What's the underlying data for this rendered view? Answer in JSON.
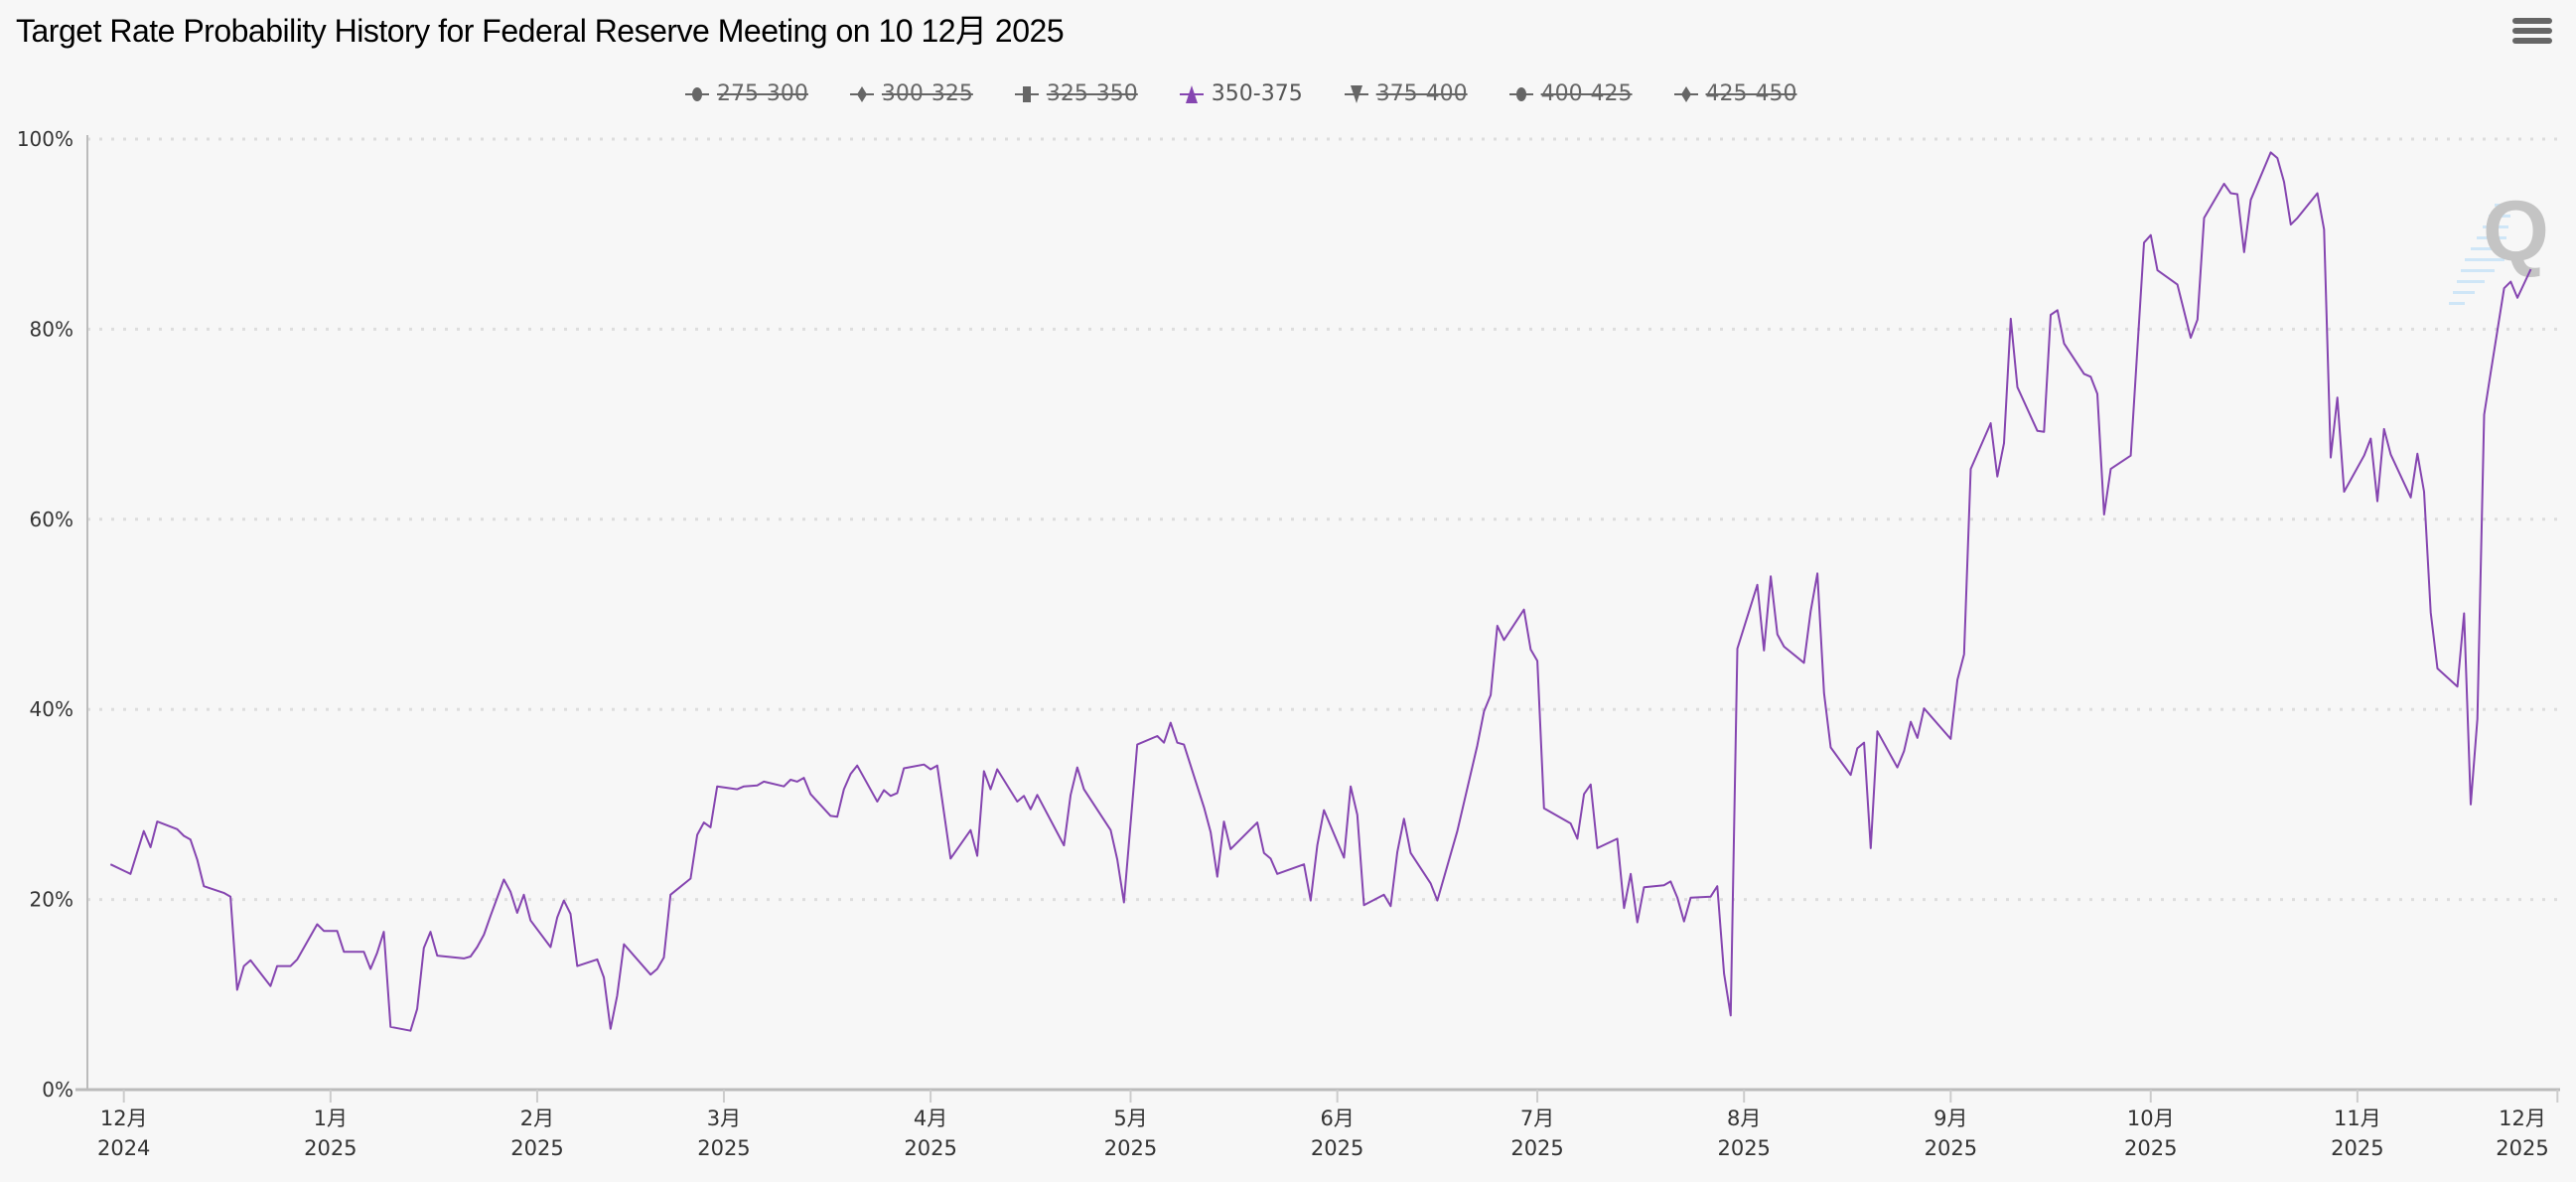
{
  "title": "Target Rate Probability History for Federal Reserve Meeting on 10 12月 2025",
  "menu_icon": "hamburger-menu-icon",
  "watermark": "Q",
  "legend": [
    {
      "label": "275-300",
      "symbol": "circle",
      "active": false
    },
    {
      "label": "300-325",
      "symbol": "diamond",
      "active": false
    },
    {
      "label": "325-350",
      "symbol": "square",
      "active": false
    },
    {
      "label": "350-375",
      "symbol": "triangle",
      "active": true
    },
    {
      "label": "375-400",
      "symbol": "triangle-down",
      "active": false
    },
    {
      "label": "400-425",
      "symbol": "circle",
      "active": false
    },
    {
      "label": "425-450",
      "symbol": "diamond",
      "active": false
    }
  ],
  "colors": {
    "active_series": "#8545b0",
    "inactive_legend": "#666666",
    "background": "#f7f7f7",
    "grid": "#dddddd"
  },
  "chart_data": {
    "type": "line",
    "grid": true,
    "legend_position": "top-center",
    "ylim": [
      0,
      100
    ],
    "y_ticks": [
      {
        "value": 0,
        "label": "0%"
      },
      {
        "value": 20,
        "label": "20%"
      },
      {
        "value": 40,
        "label": "40%"
      },
      {
        "value": 60,
        "label": "60%"
      },
      {
        "value": 80,
        "label": "80%"
      },
      {
        "value": 100,
        "label": "100%"
      }
    ],
    "xlim": [
      "2024-11-27",
      "2025-12-01"
    ],
    "x_ticks": [
      {
        "date": "2024-12-01",
        "month": "12月",
        "year": "2024"
      },
      {
        "date": "2025-01-01",
        "month": "1月",
        "year": "2025"
      },
      {
        "date": "2025-02-01",
        "month": "2月",
        "year": "2025"
      },
      {
        "date": "2025-03-01",
        "month": "3月",
        "year": "2025"
      },
      {
        "date": "2025-04-01",
        "month": "4月",
        "year": "2025"
      },
      {
        "date": "2025-05-01",
        "month": "5月",
        "year": "2025"
      },
      {
        "date": "2025-06-01",
        "month": "6月",
        "year": "2025"
      },
      {
        "date": "2025-07-01",
        "month": "7月",
        "year": "2025"
      },
      {
        "date": "2025-08-01",
        "month": "8月",
        "year": "2025"
      },
      {
        "date": "2025-09-01",
        "month": "9月",
        "year": "2025"
      },
      {
        "date": "2025-10-01",
        "month": "10月",
        "year": "2025"
      },
      {
        "date": "2025-11-01",
        "month": "11月",
        "year": "2025"
      },
      {
        "date": "2025-12-01",
        "month": "12月",
        "year": "2025"
      }
    ],
    "series": [
      {
        "name": "350-375",
        "points": [
          [
            "2024-11-29",
            23.7
          ],
          [
            "2024-12-02",
            22.7
          ],
          [
            "2024-12-04",
            27.2
          ],
          [
            "2024-12-05",
            25.5
          ],
          [
            "2024-12-06",
            28.2
          ],
          [
            "2024-12-09",
            27.4
          ],
          [
            "2024-12-10",
            26.7
          ],
          [
            "2024-12-11",
            26.3
          ],
          [
            "2024-12-12",
            24.2
          ],
          [
            "2024-12-13",
            21.4
          ],
          [
            "2024-12-16",
            20.7
          ],
          [
            "2024-12-17",
            20.3
          ],
          [
            "2024-12-18",
            10.5
          ],
          [
            "2024-12-19",
            13.0
          ],
          [
            "2024-12-20",
            13.6
          ],
          [
            "2024-12-23",
            10.9
          ],
          [
            "2024-12-24",
            13.0
          ],
          [
            "2024-12-26",
            13.0
          ],
          [
            "2024-12-27",
            13.7
          ],
          [
            "2024-12-30",
            17.4
          ],
          [
            "2024-12-31",
            16.7
          ],
          [
            "2025-01-02",
            16.7
          ],
          [
            "2025-01-03",
            14.5
          ],
          [
            "2025-01-06",
            14.5
          ],
          [
            "2025-01-07",
            12.7
          ],
          [
            "2025-01-08",
            14.4
          ],
          [
            "2025-01-09",
            16.6
          ],
          [
            "2025-01-10",
            6.6
          ],
          [
            "2025-01-13",
            6.2
          ],
          [
            "2025-01-14",
            8.5
          ],
          [
            "2025-01-15",
            14.9
          ],
          [
            "2025-01-16",
            16.6
          ],
          [
            "2025-01-17",
            14.1
          ],
          [
            "2025-01-21",
            13.8
          ],
          [
            "2025-01-22",
            14.0
          ],
          [
            "2025-01-23",
            15.0
          ],
          [
            "2025-01-24",
            16.3
          ],
          [
            "2025-01-25",
            18.3
          ],
          [
            "2025-01-27",
            22.1
          ],
          [
            "2025-01-28",
            20.8
          ],
          [
            "2025-01-29",
            18.6
          ],
          [
            "2025-01-30",
            20.5
          ],
          [
            "2025-01-31",
            17.8
          ],
          [
            "2025-02-03",
            15.0
          ],
          [
            "2025-02-04",
            18.1
          ],
          [
            "2025-02-05",
            19.9
          ],
          [
            "2025-02-06",
            18.5
          ],
          [
            "2025-02-07",
            13.0
          ],
          [
            "2025-02-10",
            13.7
          ],
          [
            "2025-02-11",
            11.8
          ],
          [
            "2025-02-12",
            6.4
          ],
          [
            "2025-02-13",
            9.9
          ],
          [
            "2025-02-14",
            15.3
          ],
          [
            "2025-02-18",
            12.1
          ],
          [
            "2025-02-19",
            12.7
          ],
          [
            "2025-02-20",
            13.9
          ],
          [
            "2025-02-21",
            20.5
          ],
          [
            "2025-02-24",
            22.2
          ],
          [
            "2025-02-25",
            26.8
          ],
          [
            "2025-02-26",
            28.1
          ],
          [
            "2025-02-27",
            27.6
          ],
          [
            "2025-02-28",
            31.9
          ],
          [
            "2025-03-03",
            31.6
          ],
          [
            "2025-03-04",
            31.9
          ],
          [
            "2025-03-06",
            32.0
          ],
          [
            "2025-03-07",
            32.4
          ],
          [
            "2025-03-10",
            31.9
          ],
          [
            "2025-03-11",
            32.6
          ],
          [
            "2025-03-12",
            32.4
          ],
          [
            "2025-03-13",
            32.8
          ],
          [
            "2025-03-14",
            31.1
          ],
          [
            "2025-03-17",
            28.8
          ],
          [
            "2025-03-18",
            28.7
          ],
          [
            "2025-03-19",
            31.6
          ],
          [
            "2025-03-20",
            33.2
          ],
          [
            "2025-03-21",
            34.1
          ],
          [
            "2025-03-24",
            30.3
          ],
          [
            "2025-03-25",
            31.5
          ],
          [
            "2025-03-26",
            30.9
          ],
          [
            "2025-03-27",
            31.2
          ],
          [
            "2025-03-28",
            33.8
          ],
          [
            "2025-03-31",
            34.2
          ],
          [
            "2025-04-01",
            33.7
          ],
          [
            "2025-04-02",
            34.1
          ],
          [
            "2025-04-04",
            24.3
          ],
          [
            "2025-04-07",
            27.3
          ],
          [
            "2025-04-08",
            24.6
          ],
          [
            "2025-04-09",
            33.5
          ],
          [
            "2025-04-10",
            31.6
          ],
          [
            "2025-04-11",
            33.7
          ],
          [
            "2025-04-14",
            30.3
          ],
          [
            "2025-04-15",
            30.9
          ],
          [
            "2025-04-16",
            29.5
          ],
          [
            "2025-04-17",
            31.0
          ],
          [
            "2025-04-21",
            25.7
          ],
          [
            "2025-04-22",
            31.0
          ],
          [
            "2025-04-23",
            33.9
          ],
          [
            "2025-04-24",
            31.6
          ],
          [
            "2025-04-28",
            27.3
          ],
          [
            "2025-04-29",
            24.2
          ],
          [
            "2025-04-30",
            19.7
          ],
          [
            "2025-05-02",
            36.3
          ],
          [
            "2025-05-05",
            37.2
          ],
          [
            "2025-05-06",
            36.5
          ],
          [
            "2025-05-07",
            38.6
          ],
          [
            "2025-05-08",
            36.5
          ],
          [
            "2025-05-09",
            36.3
          ],
          [
            "2025-05-12",
            29.7
          ],
          [
            "2025-05-13",
            27.1
          ],
          [
            "2025-05-14",
            22.4
          ],
          [
            "2025-05-15",
            28.2
          ],
          [
            "2025-05-16",
            25.3
          ],
          [
            "2025-05-20",
            28.1
          ],
          [
            "2025-05-21",
            24.9
          ],
          [
            "2025-05-22",
            24.3
          ],
          [
            "2025-05-23",
            22.7
          ],
          [
            "2025-05-27",
            23.7
          ],
          [
            "2025-05-28",
            19.9
          ],
          [
            "2025-05-29",
            25.7
          ],
          [
            "2025-05-30",
            29.4
          ],
          [
            "2025-06-02",
            24.4
          ],
          [
            "2025-06-03",
            31.9
          ],
          [
            "2025-06-04",
            28.9
          ],
          [
            "2025-06-05",
            19.4
          ],
          [
            "2025-06-08",
            20.5
          ],
          [
            "2025-06-09",
            19.3
          ],
          [
            "2025-06-10",
            25.0
          ],
          [
            "2025-06-11",
            28.5
          ],
          [
            "2025-06-12",
            24.9
          ],
          [
            "2025-06-15",
            21.7
          ],
          [
            "2025-06-16",
            19.9
          ],
          [
            "2025-06-19",
            27.2
          ],
          [
            "2025-06-22",
            36.2
          ],
          [
            "2025-06-23",
            39.8
          ],
          [
            "2025-06-24",
            41.5
          ],
          [
            "2025-06-25",
            48.8
          ],
          [
            "2025-06-26",
            47.3
          ],
          [
            "2025-06-29",
            50.5
          ],
          [
            "2025-06-30",
            46.3
          ],
          [
            "2025-07-01",
            45.1
          ],
          [
            "2025-07-02",
            29.6
          ],
          [
            "2025-07-06",
            28.0
          ],
          [
            "2025-07-07",
            26.4
          ],
          [
            "2025-07-08",
            31.1
          ],
          [
            "2025-07-09",
            32.1
          ],
          [
            "2025-07-10",
            25.4
          ],
          [
            "2025-07-13",
            26.4
          ],
          [
            "2025-07-14",
            19.1
          ],
          [
            "2025-07-15",
            22.7
          ],
          [
            "2025-07-16",
            17.6
          ],
          [
            "2025-07-17",
            21.3
          ],
          [
            "2025-07-20",
            21.5
          ],
          [
            "2025-07-21",
            21.9
          ],
          [
            "2025-07-22",
            20.2
          ],
          [
            "2025-07-23",
            17.7
          ],
          [
            "2025-07-24",
            20.2
          ],
          [
            "2025-07-27",
            20.3
          ],
          [
            "2025-07-28",
            21.4
          ],
          [
            "2025-07-29",
            12.2
          ],
          [
            "2025-07-30",
            7.8
          ],
          [
            "2025-07-31",
            46.4
          ],
          [
            "2025-08-03",
            53.1
          ],
          [
            "2025-08-04",
            46.2
          ],
          [
            "2025-08-05",
            54.0
          ],
          [
            "2025-08-06",
            47.9
          ],
          [
            "2025-08-07",
            46.6
          ],
          [
            "2025-08-10",
            44.9
          ],
          [
            "2025-08-11",
            50.3
          ],
          [
            "2025-08-12",
            54.3
          ],
          [
            "2025-08-13",
            41.7
          ],
          [
            "2025-08-14",
            36.0
          ],
          [
            "2025-08-17",
            33.1
          ],
          [
            "2025-08-18",
            35.9
          ],
          [
            "2025-08-19",
            36.5
          ],
          [
            "2025-08-20",
            25.4
          ],
          [
            "2025-08-21",
            37.7
          ],
          [
            "2025-08-24",
            33.9
          ],
          [
            "2025-08-25",
            35.6
          ],
          [
            "2025-08-26",
            38.7
          ],
          [
            "2025-08-27",
            37.0
          ],
          [
            "2025-08-28",
            40.1
          ],
          [
            "2025-09-01",
            36.9
          ],
          [
            "2025-09-02",
            43.1
          ],
          [
            "2025-09-03",
            45.8
          ],
          [
            "2025-09-04",
            65.3
          ],
          [
            "2025-09-07",
            70.1
          ],
          [
            "2025-09-08",
            64.5
          ],
          [
            "2025-09-09",
            68.0
          ],
          [
            "2025-09-10",
            81.1
          ],
          [
            "2025-09-11",
            73.9
          ],
          [
            "2025-09-14",
            69.3
          ],
          [
            "2025-09-15",
            69.2
          ],
          [
            "2025-09-16",
            81.5
          ],
          [
            "2025-09-17",
            82.0
          ],
          [
            "2025-09-18",
            78.5
          ],
          [
            "2025-09-21",
            75.3
          ],
          [
            "2025-09-22",
            75.0
          ],
          [
            "2025-09-23",
            73.2
          ],
          [
            "2025-09-24",
            60.5
          ],
          [
            "2025-09-25",
            65.3
          ],
          [
            "2025-09-28",
            66.7
          ],
          [
            "2025-09-30",
            89.1
          ],
          [
            "2025-10-01",
            89.9
          ],
          [
            "2025-10-02",
            86.2
          ],
          [
            "2025-10-05",
            84.7
          ],
          [
            "2025-10-07",
            79.1
          ],
          [
            "2025-10-08",
            81.0
          ],
          [
            "2025-10-09",
            91.7
          ],
          [
            "2025-10-12",
            95.3
          ],
          [
            "2025-10-13",
            94.3
          ],
          [
            "2025-10-14",
            94.2
          ],
          [
            "2025-10-15",
            88.1
          ],
          [
            "2025-10-16",
            93.6
          ],
          [
            "2025-10-19",
            98.6
          ],
          [
            "2025-10-20",
            98.0
          ],
          [
            "2025-10-21",
            95.5
          ],
          [
            "2025-10-22",
            91.0
          ],
          [
            "2025-10-23",
            91.7
          ],
          [
            "2025-10-26",
            94.3
          ],
          [
            "2025-10-27",
            90.5
          ],
          [
            "2025-10-28",
            66.5
          ],
          [
            "2025-10-29",
            72.8
          ],
          [
            "2025-10-30",
            62.9
          ],
          [
            "2025-11-02",
            66.7
          ],
          [
            "2025-11-03",
            68.5
          ],
          [
            "2025-11-04",
            61.9
          ],
          [
            "2025-11-05",
            69.5
          ],
          [
            "2025-11-06",
            66.8
          ],
          [
            "2025-11-09",
            62.3
          ],
          [
            "2025-11-10",
            66.9
          ],
          [
            "2025-11-11",
            62.9
          ],
          [
            "2025-11-12",
            50.2
          ],
          [
            "2025-11-13",
            44.3
          ],
          [
            "2025-11-16",
            42.4
          ],
          [
            "2025-11-17",
            50.1
          ],
          [
            "2025-11-18",
            30.0
          ],
          [
            "2025-11-19",
            39.0
          ],
          [
            "2025-11-20",
            71.0
          ],
          [
            "2025-11-21",
            75.5
          ],
          [
            "2025-11-23",
            84.3
          ],
          [
            "2025-11-24",
            85.0
          ],
          [
            "2025-11-25",
            83.3
          ],
          [
            "2025-11-27",
            86.3
          ]
        ]
      }
    ]
  }
}
